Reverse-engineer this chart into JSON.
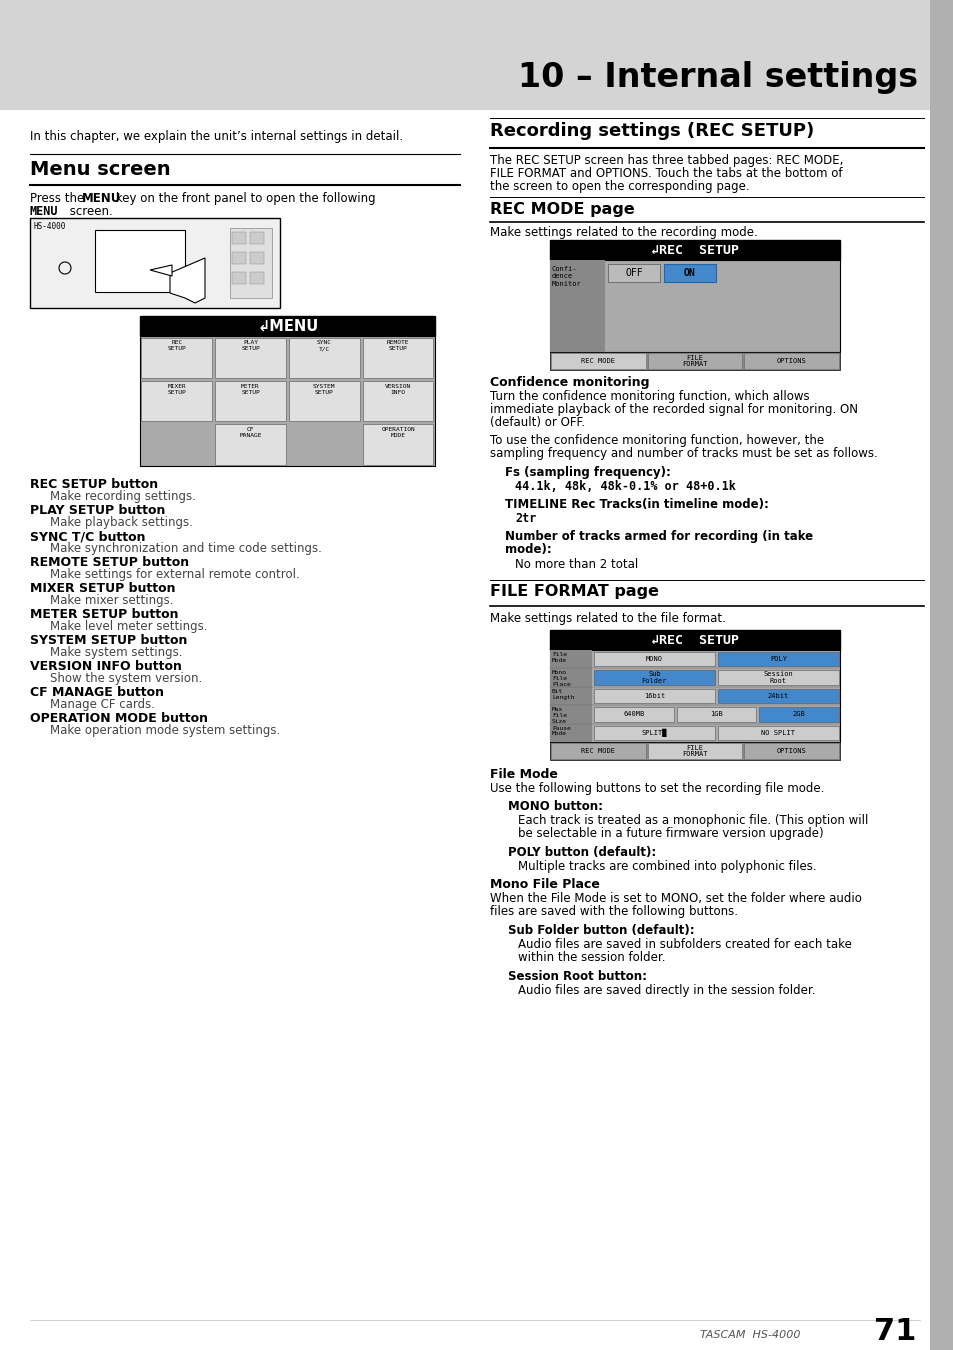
{
  "page_bg": "#ffffff",
  "header_bg": "#d4d4d4",
  "header_title": "10 – Internal settings",
  "page_number": "71",
  "brand": "TASCAM  HS-4000",
  "intro_text": "In this chapter, we explain the unit’s internal settings in detail.",
  "menu_section_title": "Menu screen",
  "menu_intro1": "Press the ",
  "menu_intro_bold": "MENU",
  "menu_intro2": " key on the front panel to open the following",
  "menu_intro3": "MENU",
  "menu_intro4": " screen.",
  "buttons": [
    {
      "label": "REC SETUP button",
      "desc": "Make recording settings."
    },
    {
      "label": "PLAY SETUP button",
      "desc": "Make playback settings."
    },
    {
      "label": "SYNC T/C button",
      "desc": "Make synchronization and time code settings."
    },
    {
      "label": "REMOTE SETUP button",
      "desc": "Make settings for external remote control."
    },
    {
      "label": "MIXER SETUP button",
      "desc": "Make mixer settings."
    },
    {
      "label": "METER SETUP button",
      "desc": "Make level meter settings."
    },
    {
      "label": "SYSTEM SETUP button",
      "desc": "Make system settings."
    },
    {
      "label": "VERSION INFO button",
      "desc": "Show the system version."
    },
    {
      "label": "CF MANAGE button",
      "desc": "Manage CF cards."
    },
    {
      "label": "OPERATION MODE button",
      "desc": "Make operation mode system settings."
    }
  ],
  "rec_section_title": "Recording settings (REC SETUP)",
  "rec_intro": "The REC SETUP screen has three tabbed pages: REC MODE,\nFILE FORMAT and OPTIONS. Touch the tabs at the bottom of\nthe screen to open the corresponding page.",
  "rec_mode_title": "REC MODE page",
  "rec_mode_intro": "Make settings related to the recording mode.",
  "confidence_title": "Confidence monitoring",
  "confidence_text1": "Turn the confidence monitoring function, which allows\nimmediate playback of the recorded signal for monitoring. ON\n(default) or OFF.",
  "confidence_text2": "To use the confidence monitoring function, however, the\nsampling frequency and number of tracks must be set as follows.",
  "fs_label": "Fs (sampling frequency):",
  "fs_values": "44.1k, 48k, 48k-0.1% or 48+0.1k",
  "timeline_label": "TIMELINE Rec Tracks(in timeline mode):",
  "timeline_values": "2tr",
  "numtracks_label": "Number of tracks armed for recording (in take",
  "numtracks_label2": "mode):",
  "numtracks_values": "No more than 2 total",
  "file_format_title": "FILE FORMAT page",
  "file_format_intro": "Make settings related to the file format.",
  "filemode_title": "File Mode",
  "filemode_text": "Use the following buttons to set the recording file mode.",
  "mono_btn_title": "MONO button:",
  "mono_btn_text1": "Each track is treated as a monophonic file. (This option will",
  "mono_btn_text2": "be selectable in a future firmware version upgrade)",
  "poly_btn_title": "POLY button (default):",
  "poly_btn_text": "Multiple tracks are combined into polyphonic files.",
  "monofileplace_title": "Mono File Place",
  "monofileplace_text1": "When the File Mode is set to MONO, set the folder where audio",
  "monofileplace_text2": "files are saved with the following buttons.",
  "subfolder_title": "Sub Folder button (default):",
  "subfolder_text1": "Audio files are saved in subfolders created for each take",
  "subfolder_text2": "within the session folder.",
  "sessionroot_title": "Session Root button:",
  "sessionroot_text": "Audio files are saved directly in the session folder.",
  "menu_btns_row1": [
    "REC\nSETUP",
    "PLAY\nSETUP",
    "SYNC\nT/C",
    "REMOTE\nSETUP"
  ],
  "menu_btns_row2": [
    "MIXER\nSETUP",
    "METER\nSETUP",
    "SYSTEM\nSETUP",
    "VERSION\nINFO"
  ],
  "menu_btns_row3": [
    "",
    "CF\nMANAGE",
    "",
    "OPERATION\nMODE"
  ]
}
